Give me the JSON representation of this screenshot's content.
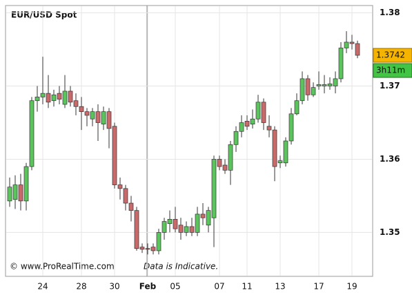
{
  "chart_data": {
    "type": "candlestick",
    "title": "EUR/USD Spot",
    "footer_left": "© www.ProRealTime.com",
    "footer_right": "Data is Indicative.",
    "last_price_label": "1.3742",
    "timer_label": "3h11m",
    "up_color": "#5cc45c",
    "down_color": "#c86a6a",
    "grid": true,
    "ylim": [
      1.344,
      1.381
    ],
    "yticks": [
      1.35,
      1.36,
      1.37,
      1.38
    ],
    "categories": [
      null,
      null,
      null,
      null,
      null,
      null,
      "24",
      null,
      null,
      null,
      null,
      null,
      null,
      "28",
      null,
      null,
      null,
      null,
      null,
      "30",
      null,
      null,
      null,
      null,
      null,
      "Feb",
      null,
      null,
      null,
      null,
      "05",
      null,
      null,
      null,
      null,
      null,
      null,
      null,
      "07",
      null,
      null,
      null,
      null,
      "11",
      null,
      null,
      null,
      null,
      null,
      "13",
      null,
      null,
      null,
      null,
      null,
      null,
      "17",
      null,
      null,
      null,
      null,
      null,
      "19",
      null
    ],
    "open": [
      1.3543,
      1.3545,
      1.3565,
      1.3543,
      1.359,
      1.368,
      1.3685,
      1.369,
      1.368,
      1.369,
      1.3675,
      1.3693,
      1.368,
      1.3672,
      1.3665,
      1.3655,
      1.3665,
      1.3648,
      1.3665,
      1.3645,
      1.3565,
      1.356,
      1.354,
      1.353,
      1.348,
      1.3478,
      1.348,
      1.3475,
      1.35,
      1.3512,
      1.3518,
      1.351,
      1.35,
      1.3508,
      1.35,
      1.3525,
      1.351,
      1.352,
      1.36,
      1.3592,
      1.3585,
      1.362,
      1.3638,
      1.3652,
      1.3648,
      1.3655,
      1.3678,
      1.3645,
      1.364,
      1.3595,
      1.3595,
      1.3625,
      1.3662,
      1.368,
      1.371,
      1.3688,
      1.37,
      1.37,
      1.37,
      1.37,
      1.371,
      1.3752,
      1.376,
      1.3758
    ],
    "high": [
      1.3575,
      1.3578,
      1.358,
      1.3595,
      1.3685,
      1.37,
      1.374,
      1.3715,
      1.3695,
      1.37,
      1.3715,
      1.37,
      1.369,
      1.3685,
      1.367,
      1.367,
      1.3675,
      1.3672,
      1.367,
      1.365,
      1.3575,
      1.3565,
      1.355,
      1.3535,
      1.3485,
      1.3485,
      1.3485,
      1.3505,
      1.352,
      1.353,
      1.3535,
      1.352,
      1.3515,
      1.352,
      1.3535,
      1.354,
      1.3535,
      1.3605,
      1.3605,
      1.36,
      1.3625,
      1.3645,
      1.366,
      1.366,
      1.3668,
      1.3688,
      1.3683,
      1.366,
      1.3645,
      1.3605,
      1.363,
      1.367,
      1.369,
      1.372,
      1.3715,
      1.3705,
      1.372,
      1.3715,
      1.3712,
      1.372,
      1.376,
      1.3775,
      1.377,
      1.3762
    ],
    "low": [
      1.3535,
      1.3532,
      1.353,
      1.353,
      1.3585,
      1.3665,
      1.3675,
      1.367,
      1.3672,
      1.3675,
      1.367,
      1.3672,
      1.366,
      1.364,
      1.3645,
      1.3645,
      1.3625,
      1.364,
      1.3615,
      1.356,
      1.3545,
      1.353,
      1.3515,
      1.3475,
      1.3472,
      1.347,
      1.347,
      1.347,
      1.349,
      1.35,
      1.35,
      1.349,
      1.3495,
      1.3495,
      1.3495,
      1.351,
      1.35,
      1.348,
      1.3585,
      1.358,
      1.3565,
      1.361,
      1.363,
      1.364,
      1.3642,
      1.365,
      1.364,
      1.363,
      1.357,
      1.3588,
      1.359,
      1.362,
      1.366,
      1.3675,
      1.368,
      1.3685,
      1.3695,
      1.369,
      1.3695,
      1.369,
      1.3705,
      1.3745,
      1.375,
      1.3738
    ],
    "close": [
      1.3562,
      1.3565,
      1.3543,
      1.359,
      1.368,
      1.3685,
      1.369,
      1.3678,
      1.3688,
      1.3682,
      1.3693,
      1.3678,
      1.3672,
      1.3665,
      1.366,
      1.3665,
      1.365,
      1.3665,
      1.3642,
      1.3565,
      1.356,
      1.354,
      1.353,
      1.3478,
      1.3477,
      1.3477,
      1.3475,
      1.35,
      1.3515,
      1.3518,
      1.3505,
      1.35,
      1.3508,
      1.35,
      1.3525,
      1.352,
      1.353,
      1.36,
      1.359,
      1.3585,
      1.362,
      1.3638,
      1.365,
      1.3645,
      1.3655,
      1.3678,
      1.365,
      1.364,
      1.359,
      1.3598,
      1.3625,
      1.3662,
      1.368,
      1.371,
      1.3688,
      1.3698,
      1.3702,
      1.3702,
      1.3703,
      1.371,
      1.3752,
      1.376,
      1.3758,
      1.3742
    ]
  }
}
